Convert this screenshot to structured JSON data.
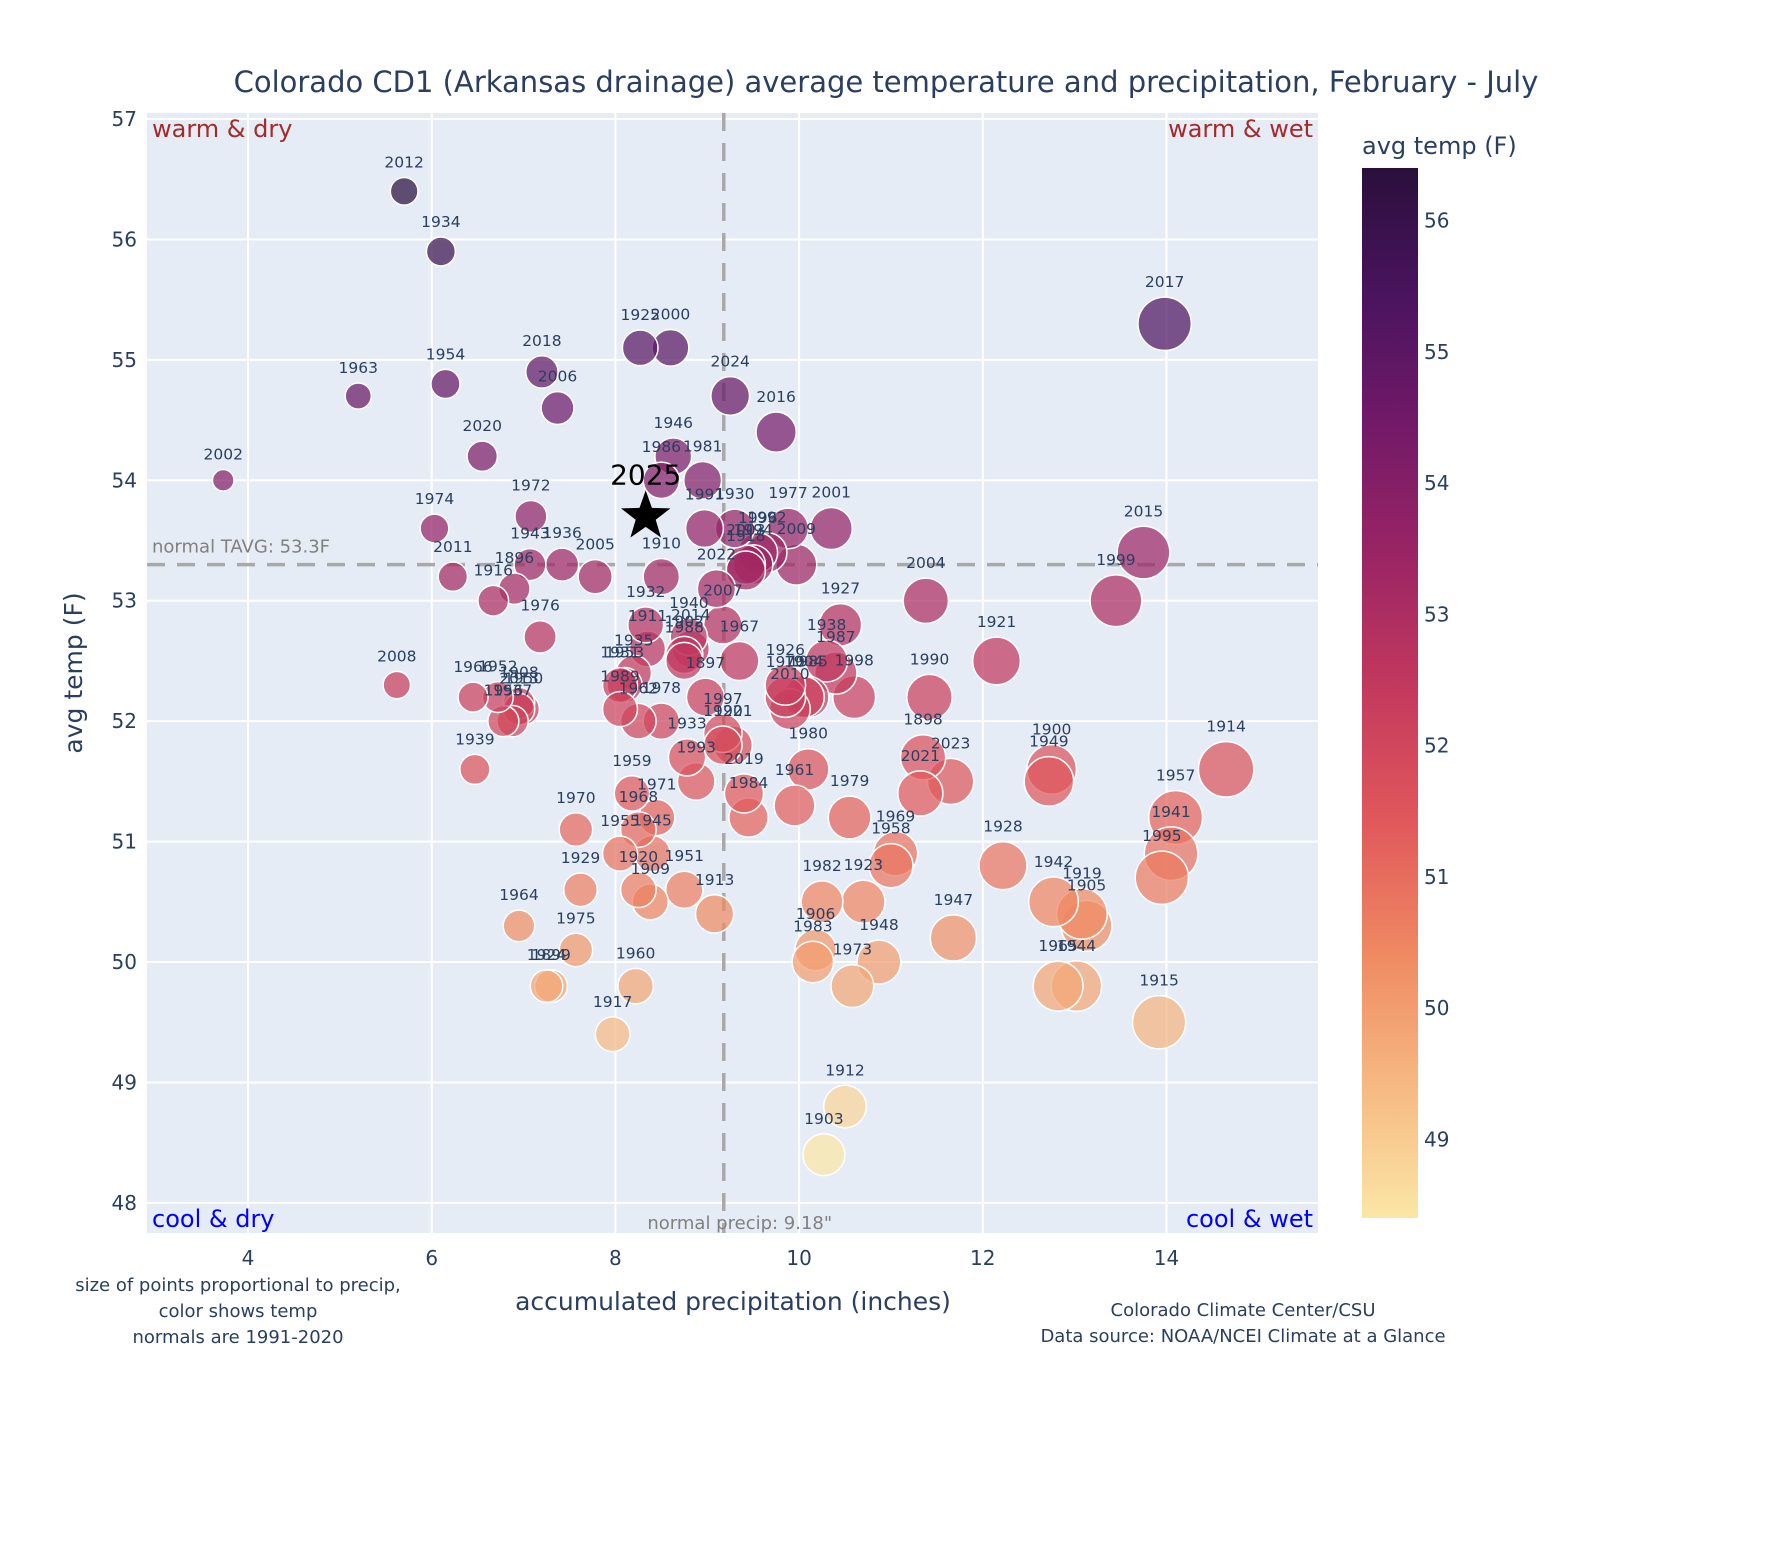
{
  "chart_data": {
    "type": "scatter",
    "title": "Colorado CD1 (Arkansas drainage) average temperature and precipitation, February - July",
    "xlabel": "accumulated precipitation (inches)",
    "ylabel": "avg temp (F)",
    "xlim": [
      2.9,
      15.65
    ],
    "ylim": [
      47.75,
      57.05
    ],
    "x_ticks": [
      4,
      6,
      8,
      10,
      12,
      14
    ],
    "y_ticks": [
      48,
      49,
      50,
      51,
      52,
      53,
      54,
      55,
      56,
      57
    ],
    "grid": true,
    "size_encoding": "precip",
    "color_encoding": "avg temp",
    "colorbar": {
      "title": "avg temp (F)",
      "range": [
        48.4,
        56.4
      ],
      "ticks": [
        49,
        50,
        51,
        52,
        53,
        54,
        55,
        56
      ],
      "colors": [
        "#fbe6a6",
        "#f6b983",
        "#ef8a62",
        "#e1595b",
        "#c53a5d",
        "#9c2564",
        "#741a68",
        "#4b145f",
        "#2a0f3b"
      ],
      "placement": "right"
    },
    "normals": {
      "temp": 53.3,
      "temp_label": "normal TAVG: 53.3F",
      "precip": 9.18,
      "precip_label": "normal precip: 9.18\""
    },
    "quadrants": {
      "top_left": "warm & dry",
      "top_right": "warm & wet",
      "bottom_left": "cool & dry",
      "bottom_right": "cool & wet"
    },
    "highlight": {
      "label": "2025",
      "x": 8.33,
      "y": 53.7,
      "marker": "star"
    },
    "points": [
      {
        "year": "2012",
        "x": 5.7,
        "y": 56.4
      },
      {
        "year": "1934",
        "x": 6.1,
        "y": 55.9
      },
      {
        "year": "2017",
        "x": 13.98,
        "y": 55.3
      },
      {
        "year": "1925",
        "x": 8.27,
        "y": 55.1
      },
      {
        "year": "2000",
        "x": 8.6,
        "y": 55.1
      },
      {
        "year": "2018",
        "x": 7.2,
        "y": 54.9
      },
      {
        "year": "1954",
        "x": 6.15,
        "y": 54.8
      },
      {
        "year": "1963",
        "x": 5.2,
        "y": 54.7
      },
      {
        "year": "2024",
        "x": 9.25,
        "y": 54.7
      },
      {
        "year": "2006",
        "x": 7.37,
        "y": 54.6
      },
      {
        "year": "2016",
        "x": 9.75,
        "y": 54.4
      },
      {
        "year": "2020",
        "x": 6.55,
        "y": 54.2
      },
      {
        "year": "1946",
        "x": 8.63,
        "y": 54.2
      },
      {
        "year": "1986",
        "x": 8.5,
        "y": 54.0
      },
      {
        "year": "1981",
        "x": 8.95,
        "y": 54.0
      },
      {
        "year": "2002",
        "x": 3.73,
        "y": 54.0
      },
      {
        "year": "1972",
        "x": 7.08,
        "y": 53.7
      },
      {
        "year": "1974",
        "x": 6.03,
        "y": 53.6
      },
      {
        "year": "1991",
        "x": 8.97,
        "y": 53.6
      },
      {
        "year": "1930",
        "x": 9.3,
        "y": 53.6
      },
      {
        "year": "1977",
        "x": 9.88,
        "y": 53.6
      },
      {
        "year": "2001",
        "x": 10.35,
        "y": 53.6
      },
      {
        "year": "2015",
        "x": 13.75,
        "y": 53.4
      },
      {
        "year": "1996",
        "x": 9.55,
        "y": 53.4
      },
      {
        "year": "1992",
        "x": 9.65,
        "y": 53.4
      },
      {
        "year": "2003",
        "x": 9.42,
        "y": 53.3
      },
      {
        "year": "1994",
        "x": 9.5,
        "y": 53.3
      },
      {
        "year": "2009",
        "x": 9.97,
        "y": 53.3
      },
      {
        "year": "1943",
        "x": 7.07,
        "y": 53.3
      },
      {
        "year": "1936",
        "x": 7.42,
        "y": 53.3
      },
      {
        "year": "1896",
        "x": 6.9,
        "y": 53.1
      },
      {
        "year": "2011",
        "x": 6.23,
        "y": 53.2
      },
      {
        "year": "2005",
        "x": 7.78,
        "y": 53.2
      },
      {
        "year": "1910",
        "x": 8.5,
        "y": 53.2
      },
      {
        "year": "1918",
        "x": 9.42,
        "y": 53.25
      },
      {
        "year": "1916",
        "x": 6.67,
        "y": 53.0
      },
      {
        "year": "2004",
        "x": 11.38,
        "y": 53.0
      },
      {
        "year": "1999",
        "x": 13.45,
        "y": 53.0
      },
      {
        "year": "2022",
        "x": 9.1,
        "y": 53.1
      },
      {
        "year": "1976",
        "x": 7.18,
        "y": 52.7
      },
      {
        "year": "1932",
        "x": 8.33,
        "y": 52.8
      },
      {
        "year": "1940",
        "x": 8.8,
        "y": 52.7
      },
      {
        "year": "1927",
        "x": 10.45,
        "y": 52.8
      },
      {
        "year": "1911",
        "x": 8.35,
        "y": 52.6
      },
      {
        "year": "1902",
        "x": 8.75,
        "y": 52.55
      },
      {
        "year": "2014",
        "x": 8.82,
        "y": 52.6
      },
      {
        "year": "2007",
        "x": 9.17,
        "y": 52.8
      },
      {
        "year": "1921",
        "x": 12.15,
        "y": 52.5
      },
      {
        "year": "1938",
        "x": 10.3,
        "y": 52.5
      },
      {
        "year": "1987",
        "x": 10.4,
        "y": 52.4
      },
      {
        "year": "1935",
        "x": 8.2,
        "y": 52.4
      },
      {
        "year": "1953",
        "x": 8.1,
        "y": 52.3
      },
      {
        "year": "1988",
        "x": 8.75,
        "y": 52.5
      },
      {
        "year": "1967",
        "x": 9.35,
        "y": 52.5
      },
      {
        "year": "2008",
        "x": 5.62,
        "y": 52.3
      },
      {
        "year": "1966",
        "x": 6.45,
        "y": 52.2
      },
      {
        "year": "1952",
        "x": 6.72,
        "y": 52.2
      },
      {
        "year": "1908",
        "x": 6.95,
        "y": 52.15
      },
      {
        "year": "1937",
        "x": 6.88,
        "y": 52.0
      },
      {
        "year": "2013",
        "x": 6.95,
        "y": 52.1
      },
      {
        "year": "1956",
        "x": 6.78,
        "y": 52.0
      },
      {
        "year": "1950",
        "x": 7.0,
        "y": 52.1
      },
      {
        "year": "1931",
        "x": 8.05,
        "y": 52.3
      },
      {
        "year": "1989",
        "x": 8.05,
        "y": 52.1
      },
      {
        "year": "1962",
        "x": 8.25,
        "y": 52.0
      },
      {
        "year": "1978",
        "x": 8.5,
        "y": 52.0
      },
      {
        "year": "1970",
        "x": 9.85,
        "y": 52.2
      },
      {
        "year": "2010",
        "x": 9.9,
        "y": 52.1
      },
      {
        "year": "1985",
        "x": 10.1,
        "y": 52.2
      },
      {
        "year": "1926",
        "x": 9.85,
        "y": 52.3
      },
      {
        "year": "1904",
        "x": 10.05,
        "y": 52.2
      },
      {
        "year": "1998",
        "x": 10.6,
        "y": 52.2
      },
      {
        "year": "1990",
        "x": 11.42,
        "y": 52.2
      },
      {
        "year": "1897",
        "x": 8.98,
        "y": 52.2
      },
      {
        "year": "1997",
        "x": 9.17,
        "y": 51.9
      },
      {
        "year": "1939",
        "x": 6.47,
        "y": 51.6
      },
      {
        "year": "1933",
        "x": 8.78,
        "y": 51.7
      },
      {
        "year": "1993",
        "x": 8.88,
        "y": 51.5
      },
      {
        "year": "1922",
        "x": 9.17,
        "y": 51.8
      },
      {
        "year": "1980",
        "x": 10.1,
        "y": 51.6
      },
      {
        "year": "1898",
        "x": 11.35,
        "y": 51.7
      },
      {
        "year": "2021",
        "x": 11.32,
        "y": 51.4
      },
      {
        "year": "2023",
        "x": 11.65,
        "y": 51.5
      },
      {
        "year": "1900",
        "x": 12.75,
        "y": 51.6
      },
      {
        "year": "1949",
        "x": 12.72,
        "y": 51.5
      },
      {
        "year": "1914",
        "x": 14.65,
        "y": 51.6
      },
      {
        "year": "1901",
        "x": 9.28,
        "y": 51.8
      },
      {
        "year": "1959",
        "x": 8.18,
        "y": 51.4
      },
      {
        "year": "1971",
        "x": 8.45,
        "y": 51.2
      },
      {
        "year": "1968",
        "x": 8.25,
        "y": 51.1
      },
      {
        "year": "2019",
        "x": 9.4,
        "y": 51.4
      },
      {
        "year": "1961",
        "x": 9.95,
        "y": 51.3
      },
      {
        "year": "1979",
        "x": 10.55,
        "y": 51.2
      },
      {
        "year": "1984",
        "x": 9.45,
        "y": 51.2
      },
      {
        "year": "1957",
        "x": 14.1,
        "y": 51.2
      },
      {
        "year": "1941",
        "x": 14.05,
        "y": 50.9
      },
      {
        "year": "1970b",
        "x": 7.57,
        "y": 51.1
      },
      {
        "year": "1955",
        "x": 8.05,
        "y": 50.9
      },
      {
        "year": "1945",
        "x": 8.4,
        "y": 50.9
      },
      {
        "year": "1969",
        "x": 11.05,
        "y": 50.9
      },
      {
        "year": "1958",
        "x": 11.0,
        "y": 50.8
      },
      {
        "year": "1928",
        "x": 12.22,
        "y": 50.8
      },
      {
        "year": "1995",
        "x": 13.95,
        "y": 50.7
      },
      {
        "year": "1929",
        "x": 7.62,
        "y": 50.6
      },
      {
        "year": "1920",
        "x": 8.25,
        "y": 50.6
      },
      {
        "year": "1909",
        "x": 8.38,
        "y": 50.5
      },
      {
        "year": "1951",
        "x": 8.75,
        "y": 50.6
      },
      {
        "year": "1913",
        "x": 9.08,
        "y": 50.4
      },
      {
        "year": "1982",
        "x": 10.25,
        "y": 50.5
      },
      {
        "year": "1923",
        "x": 10.7,
        "y": 50.5
      },
      {
        "year": "1942",
        "x": 12.77,
        "y": 50.5
      },
      {
        "year": "1919",
        "x": 13.08,
        "y": 50.4
      },
      {
        "year": "1905",
        "x": 13.13,
        "y": 50.3
      },
      {
        "year": "1964",
        "x": 6.95,
        "y": 50.3
      },
      {
        "year": "1947",
        "x": 11.68,
        "y": 50.2
      },
      {
        "year": "1975",
        "x": 7.57,
        "y": 50.1
      },
      {
        "year": "1906",
        "x": 10.18,
        "y": 50.1
      },
      {
        "year": "1983",
        "x": 10.15,
        "y": 50.0
      },
      {
        "year": "1948",
        "x": 10.87,
        "y": 50.0
      },
      {
        "year": "1924",
        "x": 7.25,
        "y": 49.8
      },
      {
        "year": "1899",
        "x": 7.3,
        "y": 49.8
      },
      {
        "year": "1960",
        "x": 8.22,
        "y": 49.8
      },
      {
        "year": "1973",
        "x": 10.58,
        "y": 49.8
      },
      {
        "year": "1965",
        "x": 12.82,
        "y": 49.8
      },
      {
        "year": "1944",
        "x": 13.02,
        "y": 49.8
      },
      {
        "year": "1917",
        "x": 7.97,
        "y": 49.4
      },
      {
        "year": "1915",
        "x": 13.92,
        "y": 49.5
      },
      {
        "year": "1912",
        "x": 10.5,
        "y": 48.8
      },
      {
        "year": "1903",
        "x": 10.27,
        "y": 48.4
      }
    ]
  },
  "notes": {
    "left_line1": "size of points proportional to precip,",
    "left_line2": "color shows temp",
    "left_line3": "normals are 1991-2020",
    "right_line1": "Colorado Climate Center/CSU",
    "right_line2": "Data source: NOAA/NCEI Climate at a Glance"
  }
}
